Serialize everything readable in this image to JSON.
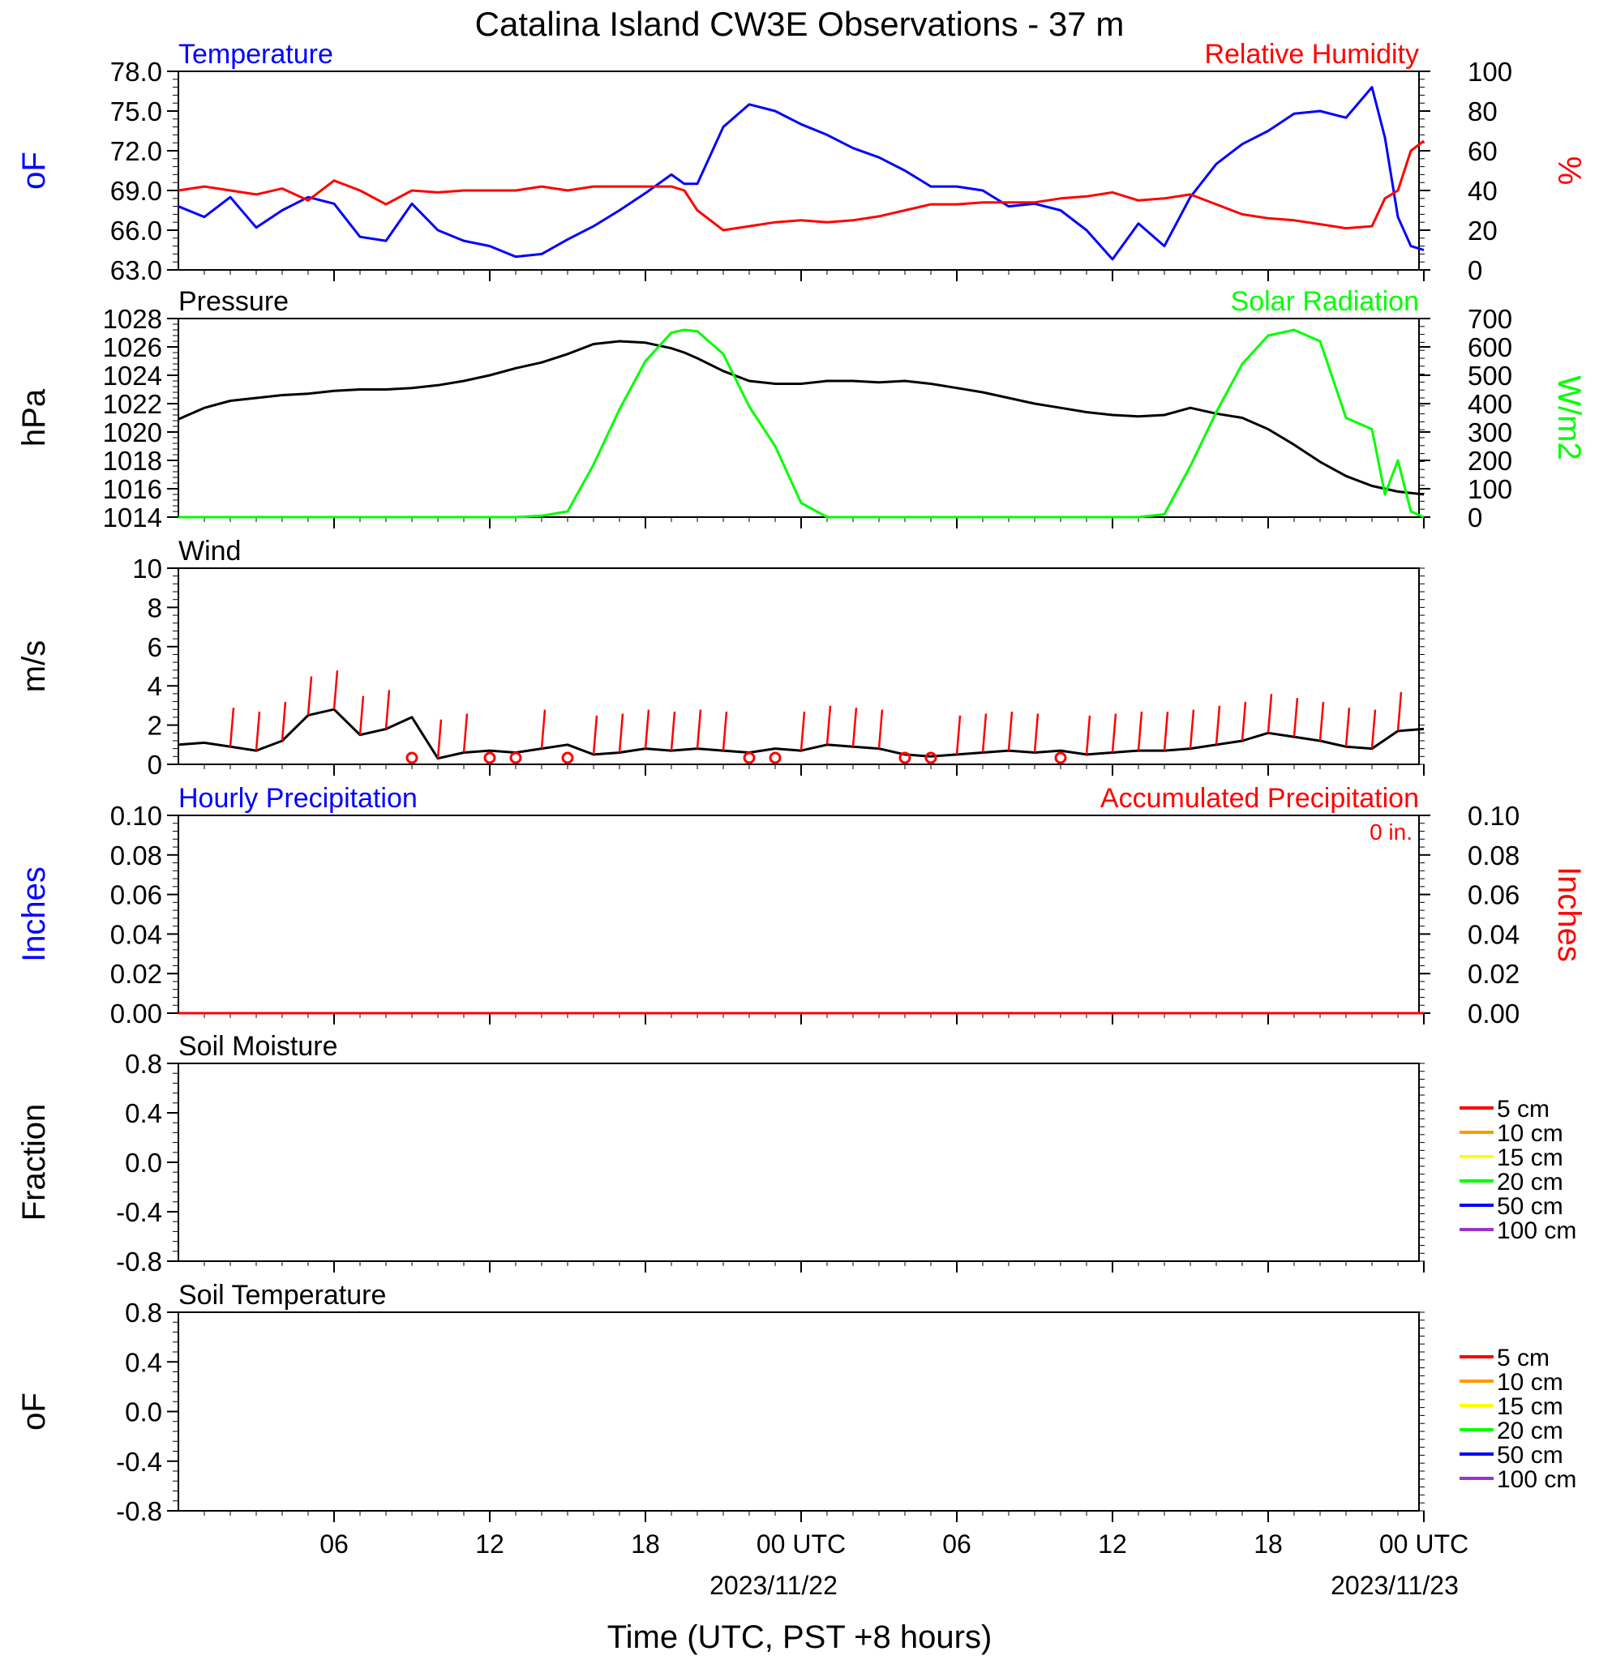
{
  "title": "Catalina Island CW3E Observations - 37 m",
  "x_axis": {
    "label": "Time (UTC, PST +8 hours)",
    "tick_labels": [
      "06",
      "12",
      "18",
      "00 UTC",
      "06",
      "12",
      "18",
      "00 UTC"
    ],
    "date_labels": [
      "2023/11/22",
      "2023/11/23"
    ]
  },
  "colors": {
    "temperature": "#0000ff",
    "humidity": "#ff0000",
    "pressure": "#000000",
    "solar": "#00ff00",
    "wind": "#000000",
    "wind_barb": "#ff0000",
    "hourly_precip": "#0000ff",
    "accum_precip": "#ff0000"
  },
  "legend": [
    {
      "label": "5 cm",
      "color": "#ff0000"
    },
    {
      "label": "10 cm",
      "color": "#ff9900"
    },
    {
      "label": "15 cm",
      "color": "#ffff00"
    },
    {
      "label": "20 cm",
      "color": "#00ff00"
    },
    {
      "label": "50 cm",
      "color": "#0000ff"
    },
    {
      "label": "100 cm",
      "color": "#9933cc"
    }
  ],
  "chart_data": [
    {
      "type": "line",
      "panel": "temperature_humidity",
      "title_left": "Temperature",
      "title_right": "Relative Humidity",
      "ylabel_left": "oF",
      "ylabel_right": "%",
      "y_left_ticks": [
        "78.0",
        "75.0",
        "72.0",
        "69.0",
        "66.0",
        "63.0"
      ],
      "y_right_ticks": [
        "100",
        "80",
        "60",
        "40",
        "20",
        "0"
      ],
      "ylim_left": [
        63,
        78
      ],
      "ylim_right": [
        0,
        100
      ],
      "x_hours": [
        0,
        1,
        2,
        3,
        4,
        5,
        6,
        7,
        8,
        9,
        10,
        11,
        12,
        13,
        14,
        15,
        16,
        17,
        18,
        19,
        19.5,
        20,
        21,
        22,
        23,
        24,
        25,
        26,
        27,
        28,
        29,
        30,
        31,
        32,
        33,
        34,
        35,
        36,
        37,
        38,
        39,
        40,
        41,
        42,
        43,
        44,
        45,
        46,
        46.5,
        47,
        47.5,
        48
      ],
      "series": [
        {
          "name": "Temperature",
          "axis": "left",
          "values": [
            67.8,
            67.0,
            68.5,
            66.2,
            67.5,
            68.5,
            68.0,
            65.5,
            65.2,
            68.0,
            66.0,
            65.2,
            64.8,
            64.0,
            64.2,
            65.3,
            66.3,
            67.5,
            68.8,
            70.2,
            69.5,
            69.5,
            73.8,
            75.5,
            75.0,
            74.0,
            73.2,
            72.2,
            71.5,
            70.5,
            69.3,
            69.3,
            69.0,
            67.8,
            68.0,
            67.5,
            66.0,
            63.8,
            66.5,
            64.8,
            68.5,
            71.0,
            72.5,
            73.5,
            74.8,
            75.0,
            74.5,
            76.8,
            73.0,
            67.0,
            64.8,
            64.5
          ]
        },
        {
          "name": "Relative Humidity",
          "axis": "right",
          "values": [
            40,
            42,
            40,
            38,
            41,
            35,
            45,
            40,
            33,
            40,
            39,
            40,
            40,
            40,
            42,
            40,
            42,
            42,
            42,
            42,
            40,
            30,
            20,
            22,
            24,
            25,
            24,
            25,
            27,
            30,
            33,
            33,
            34,
            34,
            34,
            36,
            37,
            39,
            35,
            36,
            38,
            33,
            28,
            26,
            25,
            23,
            21,
            22,
            36,
            40,
            60,
            65
          ]
        }
      ]
    },
    {
      "type": "line",
      "panel": "pressure_solar",
      "title_left": "Pressure",
      "title_right": "Solar Radiation",
      "ylabel_left": "hPa",
      "ylabel_right": "W/m2",
      "y_left_ticks": [
        "1028",
        "1026",
        "1024",
        "1022",
        "1020",
        "1018",
        "1016",
        "1014"
      ],
      "y_right_ticks": [
        "700",
        "600",
        "500",
        "400",
        "300",
        "200",
        "100",
        "0"
      ],
      "ylim_left": [
        1014,
        1028
      ],
      "ylim_right": [
        0,
        700
      ],
      "x_hours": [
        0,
        1,
        2,
        3,
        4,
        5,
        6,
        7,
        8,
        9,
        10,
        11,
        12,
        13,
        14,
        15,
        16,
        17,
        18,
        19,
        19.5,
        20,
        21,
        22,
        23,
        24,
        25,
        26,
        27,
        28,
        29,
        30,
        31,
        32,
        33,
        34,
        35,
        36,
        37,
        38,
        39,
        40,
        41,
        42,
        43,
        44,
        45,
        46,
        46.5,
        47,
        47.5,
        48
      ],
      "series": [
        {
          "name": "Pressure",
          "axis": "left",
          "values": [
            1020.9,
            1021.7,
            1022.2,
            1022.4,
            1022.6,
            1022.7,
            1022.9,
            1023.0,
            1023.0,
            1023.1,
            1023.3,
            1023.6,
            1024.0,
            1024.5,
            1024.9,
            1025.5,
            1026.2,
            1026.4,
            1026.3,
            1025.9,
            1025.6,
            1025.2,
            1024.3,
            1023.6,
            1023.4,
            1023.4,
            1023.6,
            1023.6,
            1023.5,
            1023.6,
            1023.4,
            1023.1,
            1022.8,
            1022.4,
            1022.0,
            1021.7,
            1021.4,
            1021.2,
            1021.1,
            1021.2,
            1021.7,
            1021.3,
            1021.0,
            1020.2,
            1019.1,
            1017.9,
            1016.9,
            1016.2,
            1016.0,
            1015.8,
            1015.7,
            1015.6
          ]
        },
        {
          "name": "Solar Radiation",
          "axis": "right",
          "values": [
            0,
            0,
            0,
            0,
            0,
            0,
            0,
            0,
            0,
            0,
            0,
            0,
            0,
            0,
            5,
            20,
            185,
            380,
            550,
            650,
            660,
            655,
            575,
            390,
            250,
            50,
            0,
            0,
            0,
            0,
            0,
            0,
            0,
            0,
            0,
            0,
            0,
            0,
            0,
            10,
            180,
            370,
            540,
            640,
            660,
            620,
            350,
            310,
            80,
            200,
            20,
            0
          ]
        }
      ]
    },
    {
      "type": "line",
      "panel": "wind",
      "title_left": "Wind",
      "ylabel_left": "m/s",
      "y_left_ticks": [
        "10",
        "8",
        "6",
        "4",
        "2",
        "0"
      ],
      "ylim_left": [
        0,
        10
      ],
      "x_hours": [
        0,
        1,
        2,
        3,
        4,
        5,
        6,
        7,
        8,
        9,
        10,
        11,
        12,
        13,
        14,
        15,
        16,
        17,
        18,
        19,
        20,
        21,
        22,
        23,
        24,
        25,
        26,
        27,
        28,
        29,
        30,
        31,
        32,
        33,
        34,
        35,
        36,
        37,
        38,
        39,
        40,
        41,
        42,
        43,
        44,
        45,
        46,
        47,
        48
      ],
      "series": [
        {
          "name": "Wind",
          "axis": "left",
          "values": [
            1.0,
            1.1,
            0.9,
            0.7,
            1.2,
            2.5,
            2.8,
            1.5,
            1.8,
            2.4,
            0.3,
            0.6,
            0.7,
            0.6,
            0.8,
            1.0,
            0.5,
            0.6,
            0.8,
            0.7,
            0.8,
            0.7,
            0.6,
            0.8,
            0.7,
            1.0,
            0.9,
            0.8,
            0.5,
            0.4,
            0.5,
            0.6,
            0.7,
            0.6,
            0.7,
            0.5,
            0.6,
            0.7,
            0.7,
            0.8,
            1.0,
            1.2,
            1.6,
            1.4,
            1.2,
            0.9,
            0.8,
            1.7,
            1.8
          ]
        }
      ],
      "calm_hours": [
        9,
        12,
        13,
        15,
        22,
        23,
        28,
        29,
        34
      ]
    },
    {
      "type": "line",
      "panel": "precipitation",
      "title_left": "Hourly Precipitation",
      "title_right": "Accumulated Precipitation",
      "annotation": "0 in.",
      "ylabel_left": "Inches",
      "ylabel_right": "Inches",
      "y_left_ticks": [
        "0.10",
        "0.08",
        "0.06",
        "0.04",
        "0.02",
        "0.00"
      ],
      "y_right_ticks": [
        "0.10",
        "0.08",
        "0.06",
        "0.04",
        "0.02",
        "0.00"
      ],
      "ylim_left": [
        0,
        0.1
      ],
      "ylim_right": [
        0,
        0.1
      ],
      "x_hours": [
        0,
        48
      ],
      "series": [
        {
          "name": "Hourly Precipitation",
          "axis": "left",
          "values": [
            0,
            0
          ]
        },
        {
          "name": "Accumulated Precipitation",
          "axis": "right",
          "values": [
            0,
            0
          ]
        }
      ]
    },
    {
      "type": "line",
      "panel": "soil_moisture",
      "title_left": "Soil Moisture",
      "ylabel_left": "Fraction",
      "y_left_ticks": [
        "0.8",
        "0.4",
        "0.0",
        "-0.4",
        "-0.8"
      ],
      "ylim_left": [
        -1,
        1
      ],
      "series": []
    },
    {
      "type": "line",
      "panel": "soil_temperature",
      "title_left": "Soil Temperature",
      "ylabel_left": "oF",
      "y_left_ticks": [
        "0.8",
        "0.4",
        "0.0",
        "-0.4",
        "-0.8"
      ],
      "ylim_left": [
        -1,
        1
      ],
      "series": []
    }
  ]
}
